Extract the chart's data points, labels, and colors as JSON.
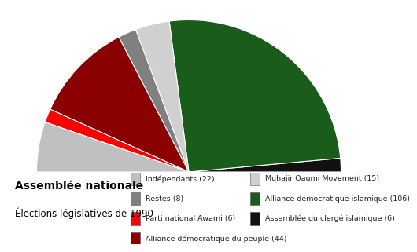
{
  "title1": "Assemblée nationale",
  "title2": "Élections législatives de 1990",
  "segments_order": [
    {
      "label": "Assemblée du clergé islamique (6)",
      "value": 6,
      "color": "#111111"
    },
    {
      "label": "Alliance démocratique islamique (106)",
      "value": 106,
      "color": "#1a5c1a"
    },
    {
      "label": "Muhajir Qaumi Movement (15)",
      "value": 15,
      "color": "#d0d0d0"
    },
    {
      "label": "Restes (8)",
      "value": 8,
      "color": "#808080"
    },
    {
      "label": "Alliance démocratique du peuple (44)",
      "value": 44,
      "color": "#8b0000"
    },
    {
      "label": "Parti national Awami (6)",
      "value": 6,
      "color": "#ff0000"
    },
    {
      "label": "Indépendants (22)",
      "value": 22,
      "color": "#c0c0c0"
    }
  ],
  "legend_col1": [
    {
      "label": "Indépendants (22)",
      "color": "#c0c0c0"
    },
    {
      "label": "Restes (8)",
      "color": "#808080"
    },
    {
      "label": "Parti national Awami (6)",
      "color": "#ff0000"
    },
    {
      "label": "Alliance démocratique du peuple (44)",
      "color": "#8b0000"
    }
  ],
  "legend_col2": [
    {
      "label": "Muhajir Qaumi Movement (15)",
      "color": "#d0d0d0"
    },
    {
      "label": "Alliance démocratique islamique (106)",
      "color": "#1a5c1a"
    },
    {
      "label": "Assemblée du clergé islamique (6)",
      "color": "#111111"
    }
  ],
  "background_color": "#ffffff",
  "edgecolor": "#ffffff"
}
